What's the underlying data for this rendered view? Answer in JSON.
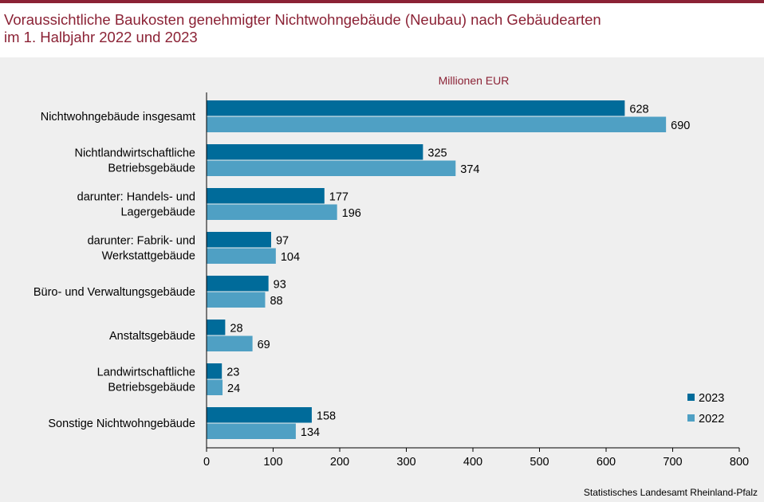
{
  "header": {
    "title_line1": "Voraussichtliche Baukosten genehmigter Nichtwohngebäude (Neubau) nach Gebäudearten",
    "title_line2": "im 1. Halbjahr 2022 und 2023"
  },
  "footer": {
    "source": "Statistisches Landesamt Rheinland-Pfalz"
  },
  "colors": {
    "title": "#8b2235",
    "series_2023": "#006b9a",
    "series_2022": "#4fa0c4",
    "background": "#efefef"
  },
  "chart_data": {
    "type": "bar",
    "orientation": "horizontal",
    "title": "Voraussichtliche Baukosten genehmigter Nichtwohngebäude (Neubau) nach Gebäudearten im 1. Halbjahr 2022 und 2023",
    "unit_label": "Millionen EUR",
    "xlabel": "",
    "ylabel": "",
    "xlim": [
      0,
      800
    ],
    "xticks": [
      0,
      100,
      200,
      300,
      400,
      500,
      600,
      700,
      800
    ],
    "grid": false,
    "legend_position": "bottom-right",
    "categories": [
      [
        "Nichtwohngebäude insgesamt"
      ],
      [
        "Nichtlandwirtschaftliche",
        "Betriebsgebäude"
      ],
      [
        "darunter: Handels- und",
        "Lagergebäude"
      ],
      [
        "darunter: Fabrik- und",
        "Werkstattgebäude"
      ],
      [
        "Büro- und Verwaltungsgebäude"
      ],
      [
        "Anstaltsgebäude"
      ],
      [
        "Landwirtschaftliche",
        "Betriebsgebäude"
      ],
      [
        "Sonstige Nichtwohngebäude"
      ]
    ],
    "series": [
      {
        "name": "2023",
        "color": "#006b9a",
        "values": [
          628,
          325,
          177,
          97,
          93,
          28,
          23,
          158
        ]
      },
      {
        "name": "2022",
        "color": "#4fa0c4",
        "values": [
          690,
          374,
          196,
          104,
          88,
          69,
          24,
          134
        ]
      }
    ]
  }
}
